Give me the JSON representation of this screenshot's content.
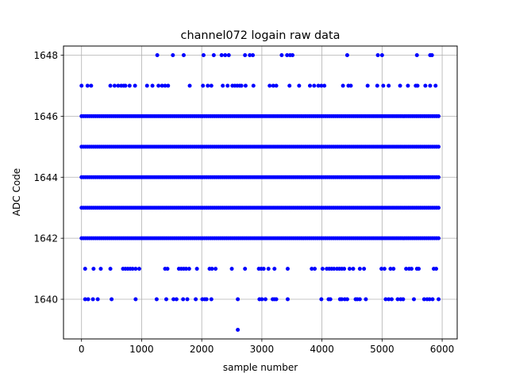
{
  "chart_data": {
    "type": "scatter",
    "title": "channel072 logain raw data",
    "xlabel": "sample number",
    "ylabel": "ADC Code",
    "xlim": [
      -300,
      6250
    ],
    "ylim": [
      1638.7,
      1648.3
    ],
    "xticks": [
      0,
      1000,
      2000,
      3000,
      4000,
      5000,
      6000
    ],
    "yticks": [
      1640,
      1642,
      1644,
      1646,
      1648
    ],
    "grid": true,
    "marker_color": "#0000ff",
    "x_range": [
      0,
      5940
    ],
    "levels": [
      {
        "y": 1646,
        "fill": "dense"
      },
      {
        "y": 1645,
        "fill": "dense"
      },
      {
        "y": 1644,
        "fill": "dense"
      },
      {
        "y": 1643,
        "fill": "dense"
      },
      {
        "y": 1642,
        "fill": "dense"
      },
      {
        "y": 1648,
        "fill": "sparse",
        "x": [
          1260,
          1520,
          1700,
          2030,
          2200,
          2330,
          2390,
          2450,
          2720,
          2800,
          2850,
          3330,
          3420,
          3470,
          3510,
          4420,
          4930,
          5000,
          5580,
          5800,
          5830
        ]
      },
      {
        "y": 1647,
        "fill": "sparse",
        "x": [
          0,
          100,
          160,
          480,
          550,
          610,
          660,
          700,
          730,
          800,
          890,
          1090,
          1180,
          1280,
          1340,
          1390,
          1440,
          1800,
          2020,
          2100,
          2160,
          2350,
          2430,
          2510,
          2550,
          2590,
          2630,
          2660,
          2730,
          2860,
          3130,
          3190,
          3240,
          3460,
          3620,
          3800,
          3870,
          3940,
          3990,
          4040,
          4350,
          4440,
          4480,
          4760,
          4920,
          5020,
          5110,
          5300,
          5430,
          5560,
          5590,
          5720,
          5800,
          5890
        ]
      },
      {
        "y": 1641,
        "fill": "sparse",
        "x": [
          60,
          200,
          320,
          480,
          690,
          730,
          770,
          810,
          850,
          900,
          960,
          1390,
          1430,
          1620,
          1660,
          1700,
          1740,
          1790,
          1920,
          2130,
          2170,
          2230,
          2500,
          2720,
          2950,
          2990,
          3030,
          3110,
          3210,
          3430,
          3830,
          3880,
          4010,
          4080,
          4120,
          4160,
          4200,
          4250,
          4290,
          4330,
          4370,
          4460,
          4520,
          4630,
          4700,
          4990,
          5040,
          5140,
          5190,
          5400,
          5450,
          5490,
          5580,
          5610,
          5860,
          5900
        ]
      },
      {
        "y": 1640,
        "fill": "sparse",
        "x": [
          60,
          110,
          190,
          270,
          500,
          900,
          1250,
          1410,
          1530,
          1580,
          1690,
          1760,
          1900,
          2010,
          2050,
          2080,
          2160,
          2600,
          2960,
          3000,
          3060,
          3180,
          3210,
          3240,
          3430,
          3990,
          4110,
          4140,
          4300,
          4330,
          4380,
          4420,
          4560,
          4590,
          4630,
          4730,
          5060,
          5110,
          5160,
          5260,
          5310,
          5350,
          5530,
          5700,
          5750,
          5790,
          5840,
          5940
        ]
      },
      {
        "y": 1639,
        "fill": "sparse",
        "x": [
          2600
        ]
      }
    ]
  }
}
